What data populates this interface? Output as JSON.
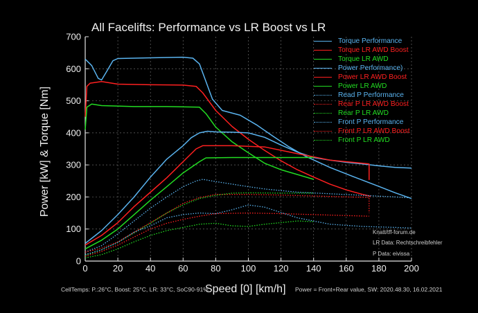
{
  "chart_data": {
    "type": "line",
    "title": "All Facelifts: Performance vs LR Boost vs LR",
    "xlabel": "Speed [0] [km/h]",
    "ylabel": "Power [kW] & Torque [Nm]",
    "xlim": [
      0,
      200
    ],
    "ylim": [
      0,
      700
    ],
    "x_ticks": [
      0,
      20,
      40,
      60,
      80,
      100,
      120,
      140,
      160,
      180,
      200
    ],
    "y_ticks": [
      0,
      100,
      200,
      300,
      400,
      500,
      600,
      700
    ],
    "grid": true,
    "legend_position": "top-right",
    "series": [
      {
        "name": "Torque Performance",
        "color": "#5ab4f0",
        "style": "solid",
        "points": [
          [
            0,
            630
          ],
          [
            4,
            610
          ],
          [
            8,
            570
          ],
          [
            10,
            565
          ],
          [
            13,
            590
          ],
          [
            17,
            625
          ],
          [
            20,
            632
          ],
          [
            40,
            634
          ],
          [
            60,
            636
          ],
          [
            66,
            633
          ],
          [
            70,
            615
          ],
          [
            74,
            560
          ],
          [
            78,
            505
          ],
          [
            84,
            470
          ],
          [
            95,
            455
          ],
          [
            105,
            425
          ],
          [
            115,
            390
          ],
          [
            125,
            356
          ],
          [
            135,
            327
          ],
          [
            150,
            292
          ],
          [
            165,
            262
          ],
          [
            180,
            233
          ],
          [
            190,
            213
          ],
          [
            200,
            195
          ]
        ]
      },
      {
        "name": "Torque LR AWD Boost",
        "color": "#ff2020",
        "style": "solid",
        "points": [
          [
            0,
            450
          ],
          [
            1,
            545
          ],
          [
            3,
            555
          ],
          [
            10,
            560
          ],
          [
            20,
            552
          ],
          [
            40,
            550
          ],
          [
            60,
            549
          ],
          [
            68,
            545
          ],
          [
            72,
            525
          ],
          [
            80,
            470
          ],
          [
            90,
            420
          ],
          [
            100,
            380
          ],
          [
            110,
            345
          ],
          [
            120,
            313
          ],
          [
            130,
            285
          ],
          [
            140,
            262
          ],
          [
            150,
            240
          ],
          [
            160,
            222
          ],
          [
            170,
            208
          ],
          [
            175,
            202
          ]
        ]
      },
      {
        "name": "Torque LR AWD",
        "color": "#22dd22",
        "style": "solid",
        "points": [
          [
            0,
            410
          ],
          [
            1,
            480
          ],
          [
            4,
            490
          ],
          [
            10,
            485
          ],
          [
            30,
            482
          ],
          [
            50,
            482
          ],
          [
            70,
            480
          ],
          [
            74,
            460
          ],
          [
            80,
            418
          ],
          [
            90,
            372
          ],
          [
            100,
            338
          ],
          [
            110,
            305
          ],
          [
            120,
            285
          ],
          [
            130,
            270
          ],
          [
            140,
            255
          ]
        ]
      },
      {
        "name": "Power Performance)",
        "color": "#5ab4f0",
        "style": "solid",
        "points": [
          [
            0,
            55
          ],
          [
            10,
            95
          ],
          [
            20,
            145
          ],
          [
            30,
            200
          ],
          [
            40,
            262
          ],
          [
            50,
            318
          ],
          [
            60,
            360
          ],
          [
            65,
            385
          ],
          [
            70,
            400
          ],
          [
            75,
            405
          ],
          [
            80,
            403
          ],
          [
            90,
            402
          ],
          [
            100,
            400
          ],
          [
            110,
            386
          ],
          [
            120,
            362
          ],
          [
            130,
            340
          ],
          [
            140,
            323
          ],
          [
            150,
            315
          ],
          [
            160,
            308
          ],
          [
            170,
            303
          ],
          [
            180,
            297
          ],
          [
            190,
            292
          ],
          [
            200,
            290
          ]
        ]
      },
      {
        "name": "Power LR AWD Boost",
        "color": "#ff2020",
        "style": "solid",
        "points": [
          [
            0,
            50
          ],
          [
            10,
            80
          ],
          [
            20,
            120
          ],
          [
            30,
            170
          ],
          [
            40,
            215
          ],
          [
            50,
            260
          ],
          [
            60,
            310
          ],
          [
            68,
            350
          ],
          [
            72,
            360
          ],
          [
            90,
            360
          ],
          [
            110,
            356
          ],
          [
            130,
            335
          ],
          [
            150,
            315
          ],
          [
            170,
            305
          ],
          [
            174,
            303
          ],
          [
            174,
            253
          ]
        ]
      },
      {
        "name": "Power LR AWD",
        "color": "#22dd22",
        "style": "solid",
        "points": [
          [
            0,
            38
          ],
          [
            10,
            65
          ],
          [
            20,
            100
          ],
          [
            30,
            145
          ],
          [
            40,
            190
          ],
          [
            50,
            232
          ],
          [
            60,
            275
          ],
          [
            70,
            310
          ],
          [
            74,
            322
          ],
          [
            90,
            323
          ],
          [
            110,
            323
          ],
          [
            130,
            323
          ],
          [
            140,
            323
          ]
        ]
      },
      {
        "name": "Read P Performance",
        "color": "#5ab4f0",
        "style": "dotted",
        "points": [
          [
            0,
            28
          ],
          [
            10,
            48
          ],
          [
            20,
            85
          ],
          [
            30,
            125
          ],
          [
            40,
            165
          ],
          [
            50,
            200
          ],
          [
            60,
            232
          ],
          [
            68,
            250
          ],
          [
            72,
            255
          ],
          [
            80,
            248
          ],
          [
            90,
            240
          ],
          [
            100,
            232
          ],
          [
            110,
            225
          ],
          [
            130,
            215
          ],
          [
            150,
            210
          ],
          [
            170,
            205
          ],
          [
            190,
            200
          ],
          [
            200,
            197
          ]
        ]
      },
      {
        "name": "Rear P LR AWD Boost",
        "color": "#ff2020",
        "style": "dotted",
        "points": [
          [
            0,
            28
          ],
          [
            10,
            40
          ],
          [
            20,
            60
          ],
          [
            30,
            90
          ],
          [
            40,
            120
          ],
          [
            50,
            150
          ],
          [
            60,
            180
          ],
          [
            70,
            198
          ],
          [
            80,
            208
          ],
          [
            100,
            208
          ],
          [
            120,
            206
          ],
          [
            140,
            203
          ],
          [
            160,
            200
          ],
          [
            174,
            199
          ],
          [
            174,
            150
          ]
        ]
      },
      {
        "name": "Rear P LR AWD",
        "color": "#22dd22",
        "style": "dotted",
        "points": [
          [
            0,
            18
          ],
          [
            10,
            35
          ],
          [
            20,
            58
          ],
          [
            30,
            88
          ],
          [
            40,
            118
          ],
          [
            50,
            150
          ],
          [
            60,
            175
          ],
          [
            70,
            195
          ],
          [
            80,
            205
          ],
          [
            90,
            212
          ],
          [
            100,
            213
          ],
          [
            120,
            212
          ],
          [
            140,
            212
          ]
        ]
      },
      {
        "name": "Front P Performance",
        "color": "#5ab4f0",
        "style": "dotted",
        "points": [
          [
            0,
            20
          ],
          [
            10,
            35
          ],
          [
            20,
            58
          ],
          [
            30,
            90
          ],
          [
            40,
            110
          ],
          [
            50,
            135
          ],
          [
            60,
            145
          ],
          [
            70,
            150
          ],
          [
            80,
            148
          ],
          [
            90,
            160
          ],
          [
            100,
            175
          ],
          [
            110,
            168
          ],
          [
            130,
            135
          ],
          [
            150,
            115
          ],
          [
            170,
            108
          ],
          [
            190,
            105
          ],
          [
            200,
            103
          ]
        ]
      },
      {
        "name": "Front P LR AWD Boost",
        "color": "#ff2020",
        "style": "dotted",
        "points": [
          [
            0,
            15
          ],
          [
            10,
            30
          ],
          [
            20,
            50
          ],
          [
            30,
            75
          ],
          [
            40,
            100
          ],
          [
            50,
            118
          ],
          [
            60,
            130
          ],
          [
            70,
            140
          ],
          [
            80,
            148
          ],
          [
            100,
            150
          ],
          [
            120,
            148
          ],
          [
            140,
            145
          ],
          [
            160,
            142
          ],
          [
            174,
            140
          ]
        ]
      },
      {
        "name": "Front P LR AWD",
        "color": "#22dd22",
        "style": "dotted",
        "points": [
          [
            0,
            10
          ],
          [
            10,
            20
          ],
          [
            20,
            38
          ],
          [
            30,
            60
          ],
          [
            40,
            80
          ],
          [
            50,
            95
          ],
          [
            60,
            105
          ],
          [
            70,
            115
          ],
          [
            80,
            118
          ],
          [
            90,
            110
          ],
          [
            100,
            108
          ],
          [
            110,
            115
          ],
          [
            120,
            120
          ],
          [
            130,
            125
          ],
          [
            140,
            123
          ]
        ]
      }
    ]
  },
  "annotations": {
    "credit1": "Knatt/tff-forum.de",
    "credit2": "LR Data: Rechtschreibfehler",
    "credit3": "P Data: eivissa"
  },
  "footer": {
    "left": "CellTemps: P.:26°C, Boost: 25°C, LR: 33°C, SoC90-91%",
    "right": "Power = Front+Rear value, SW: 2020.48.30, 16.02.2021"
  }
}
